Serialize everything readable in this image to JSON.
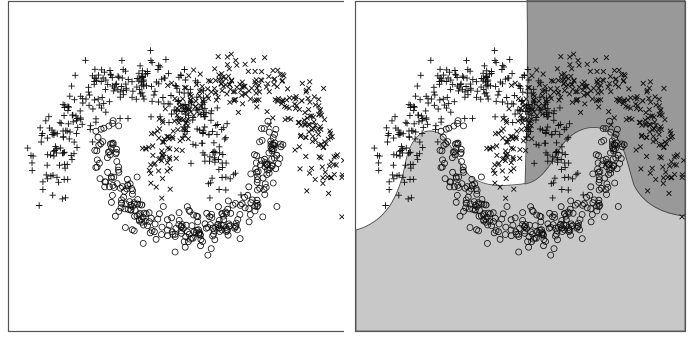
{
  "figure": {
    "panels": 2
  },
  "chart_data": [
    {
      "type": "scatter",
      "panel": "left",
      "title": "",
      "xlabel": "",
      "ylabel": "",
      "xlim": [
        -1.5,
        2.5
      ],
      "ylim": [
        -1.1,
        1.3
      ],
      "grid": false,
      "legend": "none",
      "markers": {
        "class-plus": "+",
        "class-cross": "x",
        "class-circle": "o"
      },
      "series": [
        {
          "class": "plus",
          "center": [
            0.0,
            0.0
          ],
          "radius": 1.0,
          "angle_range": [
            0.0,
            3.1416
          ],
          "count": 320,
          "noise": 0.12,
          "description_shape": "upper-left arc"
        },
        {
          "class": "cross",
          "center": [
            1.3,
            0.0
          ],
          "radius": 1.0,
          "angle_range": [
            0.0,
            3.1416
          ],
          "count": 320,
          "noise": 0.12,
          "description_shape": "upper-right arc"
        },
        {
          "class": "circle",
          "center": [
            0.65,
            0.35
          ],
          "radius": 1.0,
          "angle_range": [
            3.1416,
            6.2832
          ],
          "count": 300,
          "noise": 0.09,
          "description_shape": "lower U arc"
        }
      ]
    },
    {
      "type": "scatter",
      "panel": "right",
      "title": "",
      "xlabel": "",
      "ylabel": "",
      "xlim": [
        -1.5,
        2.5
      ],
      "ylim": [
        -1.1,
        1.3
      ],
      "grid": false,
      "legend": "none",
      "series_same_as": "left",
      "regions": {
        "plus": "#ffffff",
        "circle": "#c8c8c8",
        "cross": "#999999"
      }
    }
  ],
  "colors": {
    "frame": "#555555",
    "marker": "#111111",
    "region_white": "#ffffff",
    "region_light": "#c8c8c8",
    "region_dark": "#999999"
  }
}
